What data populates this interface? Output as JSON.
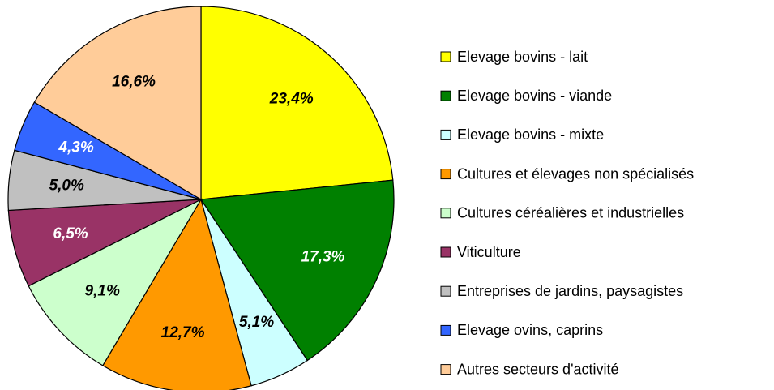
{
  "chart_data": {
    "type": "pie",
    "categories": [
      "Elevage bovins - lait",
      "Elevage bovins - viande",
      "Elevage bovins - mixte",
      "Cultures et élevages non spécialisés",
      "Cultures céréalières et industrielles",
      "Viticulture",
      "Entreprises de jardins, paysagistes",
      "Elevage ovins, caprins",
      "Autres secteurs d'activité"
    ],
    "values": [
      23.4,
      17.3,
      5.1,
      12.7,
      9.1,
      6.5,
      5.0,
      4.3,
      16.6
    ],
    "value_labels": [
      "23,4%",
      "17,3%",
      "5,1%",
      "12,7%",
      "9,1%",
      "6,5%",
      "5,0%",
      "4,3%",
      "16,6%"
    ],
    "colors": [
      "#ffff00",
      "#008000",
      "#ccffff",
      "#ff9900",
      "#ccffcc",
      "#993366",
      "#c0c0c0",
      "#3366ff",
      "#ffcc99"
    ],
    "label_colors": [
      "#000000",
      "#ffffff",
      "#000000",
      "#000000",
      "#000000",
      "#ffffff",
      "#000000",
      "#ffffff",
      "#000000"
    ],
    "legend": "right"
  }
}
